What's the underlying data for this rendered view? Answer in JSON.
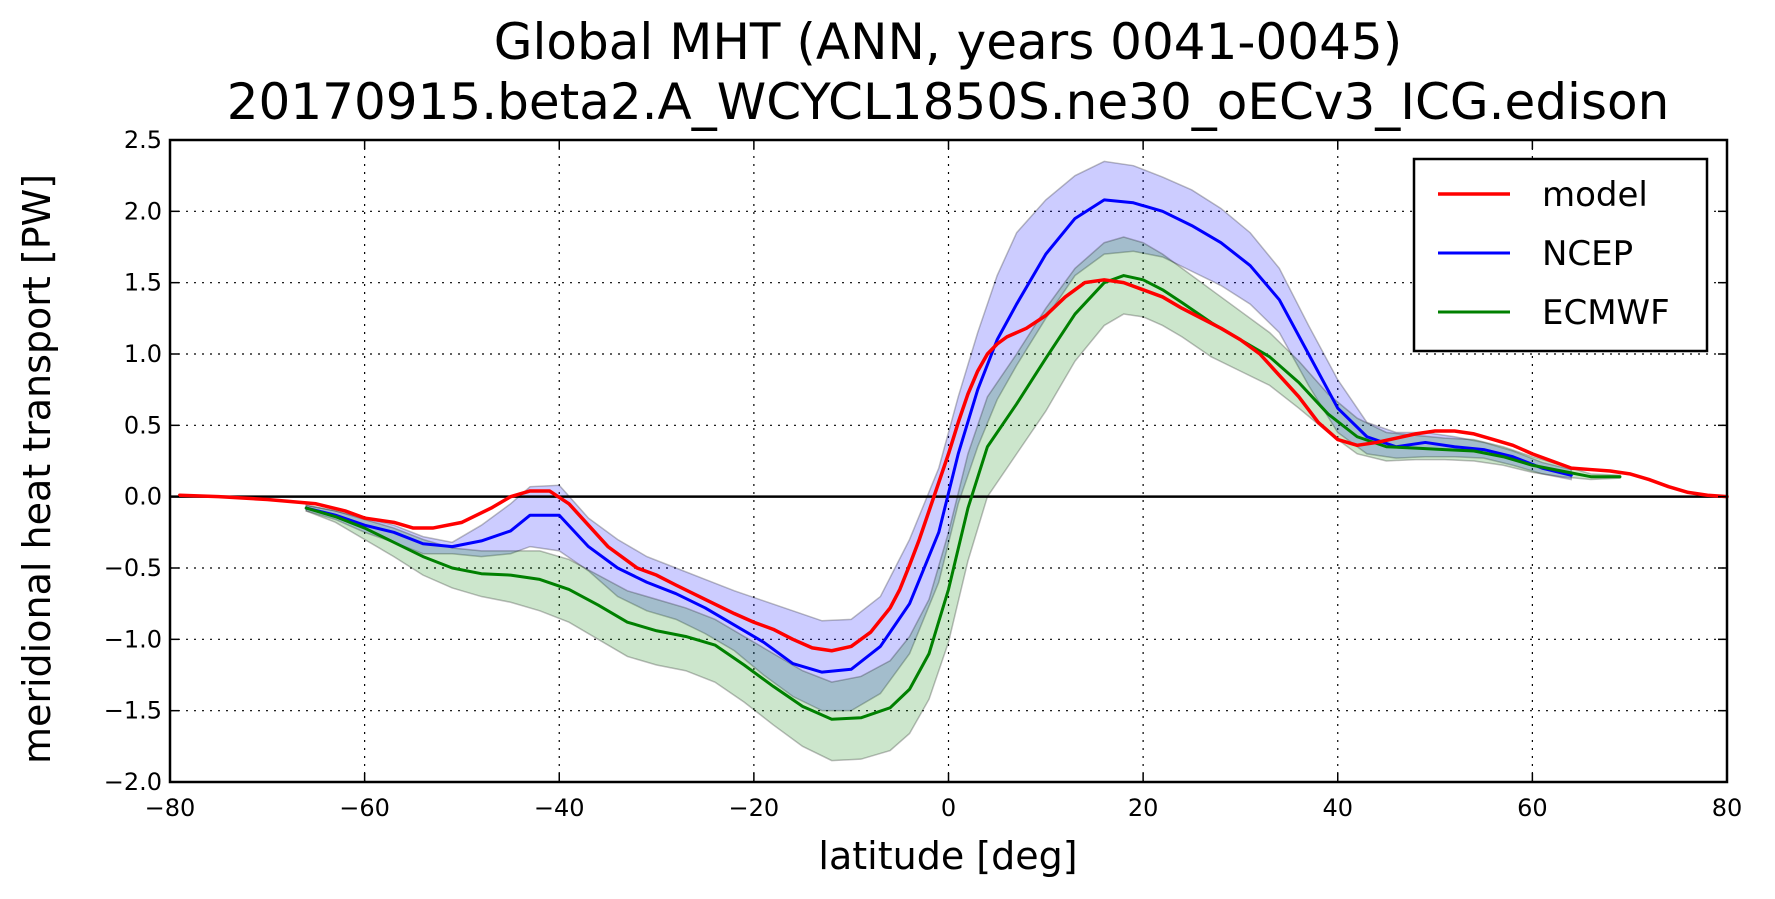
{
  "chart_data": {
    "type": "line",
    "title": "Global MHT (ANN, years 0041-0045)",
    "subtitle": "20170915.beta2.A_WCYCL1850S.ne30_oECv3_ICG.edison",
    "xlabel": "latitude [deg]",
    "ylabel": "meridional heat transport [PW]",
    "xlim": [
      -80,
      80
    ],
    "ylim": [
      -2.0,
      2.5
    ],
    "xticks": [
      -80,
      -60,
      -40,
      -20,
      0,
      20,
      40,
      60,
      80
    ],
    "xtick_labels": [
      "−80",
      "−60",
      "−40",
      "−20",
      "0",
      "20",
      "40",
      "60",
      "80"
    ],
    "yticks": [
      -2.0,
      -1.5,
      -1.0,
      -0.5,
      0.0,
      0.5,
      1.0,
      1.5,
      2.0,
      2.5
    ],
    "ytick_labels": [
      "−2.0",
      "−1.5",
      "−1.0",
      "−0.5",
      "0.0",
      "0.5",
      "1.0",
      "1.5",
      "2.0",
      "2.5"
    ],
    "grid": true,
    "zero_line": true,
    "legend_position": "top-right",
    "series": [
      {
        "name": "model",
        "color": "#ff0000",
        "x": [
          -79,
          -75,
          -70,
          -65,
          -62,
          -60,
          -57,
          -55,
          -53,
          -50,
          -47,
          -45,
          -43,
          -41,
          -39,
          -37,
          -35,
          -32,
          -30,
          -28,
          -25,
          -22,
          -20,
          -18,
          -16,
          -14,
          -12,
          -10,
          -8,
          -6,
          -5,
          -4,
          -3,
          -2,
          -1,
          0,
          1,
          2,
          3,
          4,
          5,
          6,
          8,
          10,
          12,
          14,
          16,
          18,
          20,
          22,
          24,
          26,
          28,
          30,
          32,
          34,
          36,
          38,
          40,
          42,
          44,
          46,
          48,
          50,
          52,
          54,
          56,
          58,
          60,
          62,
          64,
          66,
          68,
          70,
          72,
          74,
          76,
          78,
          80
        ],
        "y": [
          0.01,
          0.0,
          -0.02,
          -0.05,
          -0.1,
          -0.15,
          -0.18,
          -0.22,
          -0.22,
          -0.18,
          -0.08,
          0.0,
          0.04,
          0.04,
          -0.05,
          -0.2,
          -0.35,
          -0.5,
          -0.55,
          -0.62,
          -0.72,
          -0.82,
          -0.88,
          -0.93,
          -1.0,
          -1.06,
          -1.08,
          -1.05,
          -0.95,
          -0.78,
          -0.65,
          -0.48,
          -0.3,
          -0.1,
          0.1,
          0.3,
          0.52,
          0.72,
          0.88,
          1.0,
          1.07,
          1.12,
          1.18,
          1.27,
          1.4,
          1.5,
          1.52,
          1.5,
          1.45,
          1.4,
          1.32,
          1.25,
          1.18,
          1.1,
          1.0,
          0.85,
          0.7,
          0.52,
          0.4,
          0.36,
          0.38,
          0.41,
          0.44,
          0.46,
          0.46,
          0.44,
          0.4,
          0.36,
          0.3,
          0.25,
          0.2,
          0.19,
          0.18,
          0.16,
          0.12,
          0.07,
          0.03,
          0.01,
          0.0
        ]
      },
      {
        "name": "NCEP",
        "color": "#0000ff",
        "band_color": "#0000ff",
        "x": [
          -66,
          -63,
          -60,
          -57,
          -54,
          -51,
          -48,
          -45,
          -43,
          -40,
          -37,
          -34,
          -31,
          -28,
          -25,
          -22,
          -19,
          -16,
          -13,
          -10,
          -7,
          -4,
          -1,
          1,
          3,
          5,
          7,
          10,
          13,
          16,
          19,
          22,
          25,
          28,
          31,
          34,
          37,
          40,
          43,
          46,
          49,
          52,
          55,
          58,
          61,
          64
        ],
        "y": [
          -0.08,
          -0.13,
          -0.2,
          -0.25,
          -0.33,
          -0.35,
          -0.31,
          -0.24,
          -0.13,
          -0.13,
          -0.35,
          -0.5,
          -0.6,
          -0.68,
          -0.78,
          -0.9,
          -1.02,
          -1.17,
          -1.23,
          -1.21,
          -1.05,
          -0.75,
          -0.25,
          0.3,
          0.75,
          1.1,
          1.35,
          1.7,
          1.95,
          2.08,
          2.06,
          2.0,
          1.9,
          1.78,
          1.62,
          1.38,
          1.0,
          0.62,
          0.42,
          0.35,
          0.38,
          0.35,
          0.33,
          0.28,
          0.2,
          0.15
        ],
        "upper": [
          -0.06,
          -0.1,
          -0.15,
          -0.2,
          -0.28,
          -0.32,
          -0.2,
          -0.05,
          0.07,
          0.08,
          -0.15,
          -0.3,
          -0.42,
          -0.5,
          -0.58,
          -0.66,
          -0.73,
          -0.8,
          -0.87,
          -0.86,
          -0.7,
          -0.3,
          0.2,
          0.7,
          1.15,
          1.55,
          1.85,
          2.08,
          2.25,
          2.35,
          2.32,
          2.24,
          2.15,
          2.02,
          1.85,
          1.6,
          1.2,
          0.82,
          0.52,
          0.45,
          0.45,
          0.42,
          0.38,
          0.32,
          0.24,
          0.19
        ],
        "lower": [
          -0.1,
          -0.16,
          -0.25,
          -0.32,
          -0.4,
          -0.4,
          -0.42,
          -0.4,
          -0.35,
          -0.38,
          -0.52,
          -0.7,
          -0.8,
          -0.86,
          -0.96,
          -1.08,
          -1.25,
          -1.4,
          -1.5,
          -1.5,
          -1.38,
          -1.1,
          -0.6,
          -0.05,
          0.35,
          0.68,
          0.92,
          1.25,
          1.55,
          1.7,
          1.72,
          1.68,
          1.58,
          1.48,
          1.35,
          1.15,
          0.78,
          0.45,
          0.3,
          0.27,
          0.28,
          0.28,
          0.27,
          0.22,
          0.16,
          0.12
        ]
      },
      {
        "name": "ECMWF",
        "color": "#008000",
        "band_color": "#008000",
        "x": [
          -66,
          -63,
          -60,
          -57,
          -54,
          -51,
          -48,
          -45,
          -42,
          -39,
          -36,
          -33,
          -30,
          -27,
          -24,
          -21,
          -18,
          -15,
          -12,
          -9,
          -6,
          -4,
          -2,
          0,
          2,
          4,
          7,
          10,
          13,
          16,
          18,
          20,
          22,
          24,
          27,
          30,
          33,
          36,
          39,
          42,
          45,
          48,
          51,
          54,
          57,
          60,
          63,
          66,
          69
        ],
        "y": [
          -0.08,
          -0.14,
          -0.22,
          -0.32,
          -0.42,
          -0.5,
          -0.54,
          -0.55,
          -0.58,
          -0.65,
          -0.76,
          -0.88,
          -0.94,
          -0.98,
          -1.04,
          -1.18,
          -1.33,
          -1.47,
          -1.56,
          -1.55,
          -1.48,
          -1.35,
          -1.1,
          -0.65,
          -0.08,
          0.35,
          0.65,
          0.97,
          1.28,
          1.5,
          1.55,
          1.52,
          1.45,
          1.36,
          1.22,
          1.1,
          0.98,
          0.8,
          0.58,
          0.42,
          0.35,
          0.34,
          0.33,
          0.32,
          0.28,
          0.22,
          0.18,
          0.14,
          0.14
        ],
        "upper": [
          -0.06,
          -0.1,
          -0.16,
          -0.22,
          -0.3,
          -0.36,
          -0.38,
          -0.38,
          -0.38,
          -0.44,
          -0.55,
          -0.66,
          -0.72,
          -0.78,
          -0.86,
          -0.98,
          -1.1,
          -1.22,
          -1.3,
          -1.26,
          -1.15,
          -0.98,
          -0.72,
          -0.25,
          0.3,
          0.7,
          1.0,
          1.32,
          1.6,
          1.78,
          1.82,
          1.78,
          1.7,
          1.6,
          1.45,
          1.3,
          1.15,
          0.95,
          0.72,
          0.55,
          0.45,
          0.43,
          0.41,
          0.4,
          0.35,
          0.28,
          0.22,
          0.16,
          0.15
        ],
        "lower": [
          -0.1,
          -0.18,
          -0.3,
          -0.42,
          -0.55,
          -0.64,
          -0.7,
          -0.74,
          -0.8,
          -0.88,
          -1.0,
          -1.12,
          -1.18,
          -1.22,
          -1.3,
          -1.44,
          -1.6,
          -1.75,
          -1.85,
          -1.84,
          -1.78,
          -1.66,
          -1.42,
          -1.02,
          -0.45,
          0.0,
          0.3,
          0.6,
          0.95,
          1.2,
          1.28,
          1.26,
          1.2,
          1.12,
          0.98,
          0.88,
          0.78,
          0.62,
          0.45,
          0.3,
          0.25,
          0.26,
          0.26,
          0.25,
          0.22,
          0.17,
          0.14,
          0.12,
          0.13
        ]
      }
    ]
  }
}
